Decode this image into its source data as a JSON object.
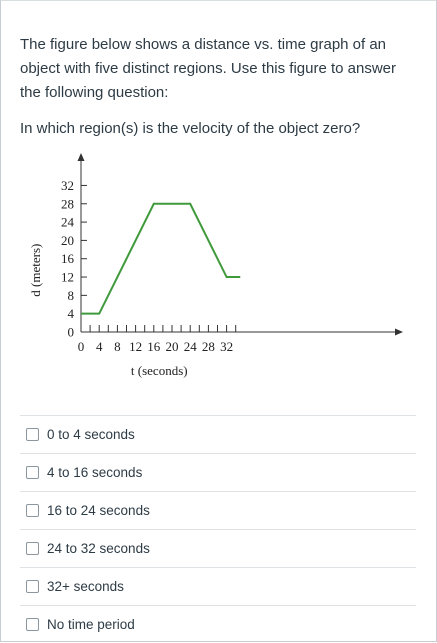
{
  "question": {
    "prompt": "The figure below shows a distance vs. time graph of an object with five distinct regions. Use this figure to answer the following question:",
    "text": "In which region(s) is the velocity of the object zero?"
  },
  "chart_data": {
    "type": "line",
    "xlabel": "t (seconds)",
    "ylabel": "d (meters)",
    "x_ticks": [
      "0",
      "4",
      "8",
      "12",
      "16",
      "20",
      "24",
      "28",
      "32"
    ],
    "y_ticks": [
      "0",
      "4",
      "8",
      "12",
      "16",
      "20",
      "24",
      "28",
      "32"
    ],
    "xlim": [
      0,
      35
    ],
    "ylim": [
      0,
      33
    ],
    "line_color": "#3e9a3a",
    "series": [
      {
        "x": [
          0,
          4,
          16,
          24,
          32,
          35
        ],
        "y": [
          4,
          4,
          28,
          28,
          12,
          12
        ]
      }
    ]
  },
  "options": [
    {
      "label": "0 to 4 seconds"
    },
    {
      "label": "4 to 16 seconds"
    },
    {
      "label": "16 to 24 seconds"
    },
    {
      "label": "24 to 32 seconds"
    },
    {
      "label": "32+ seconds"
    },
    {
      "label": "No time period"
    }
  ]
}
